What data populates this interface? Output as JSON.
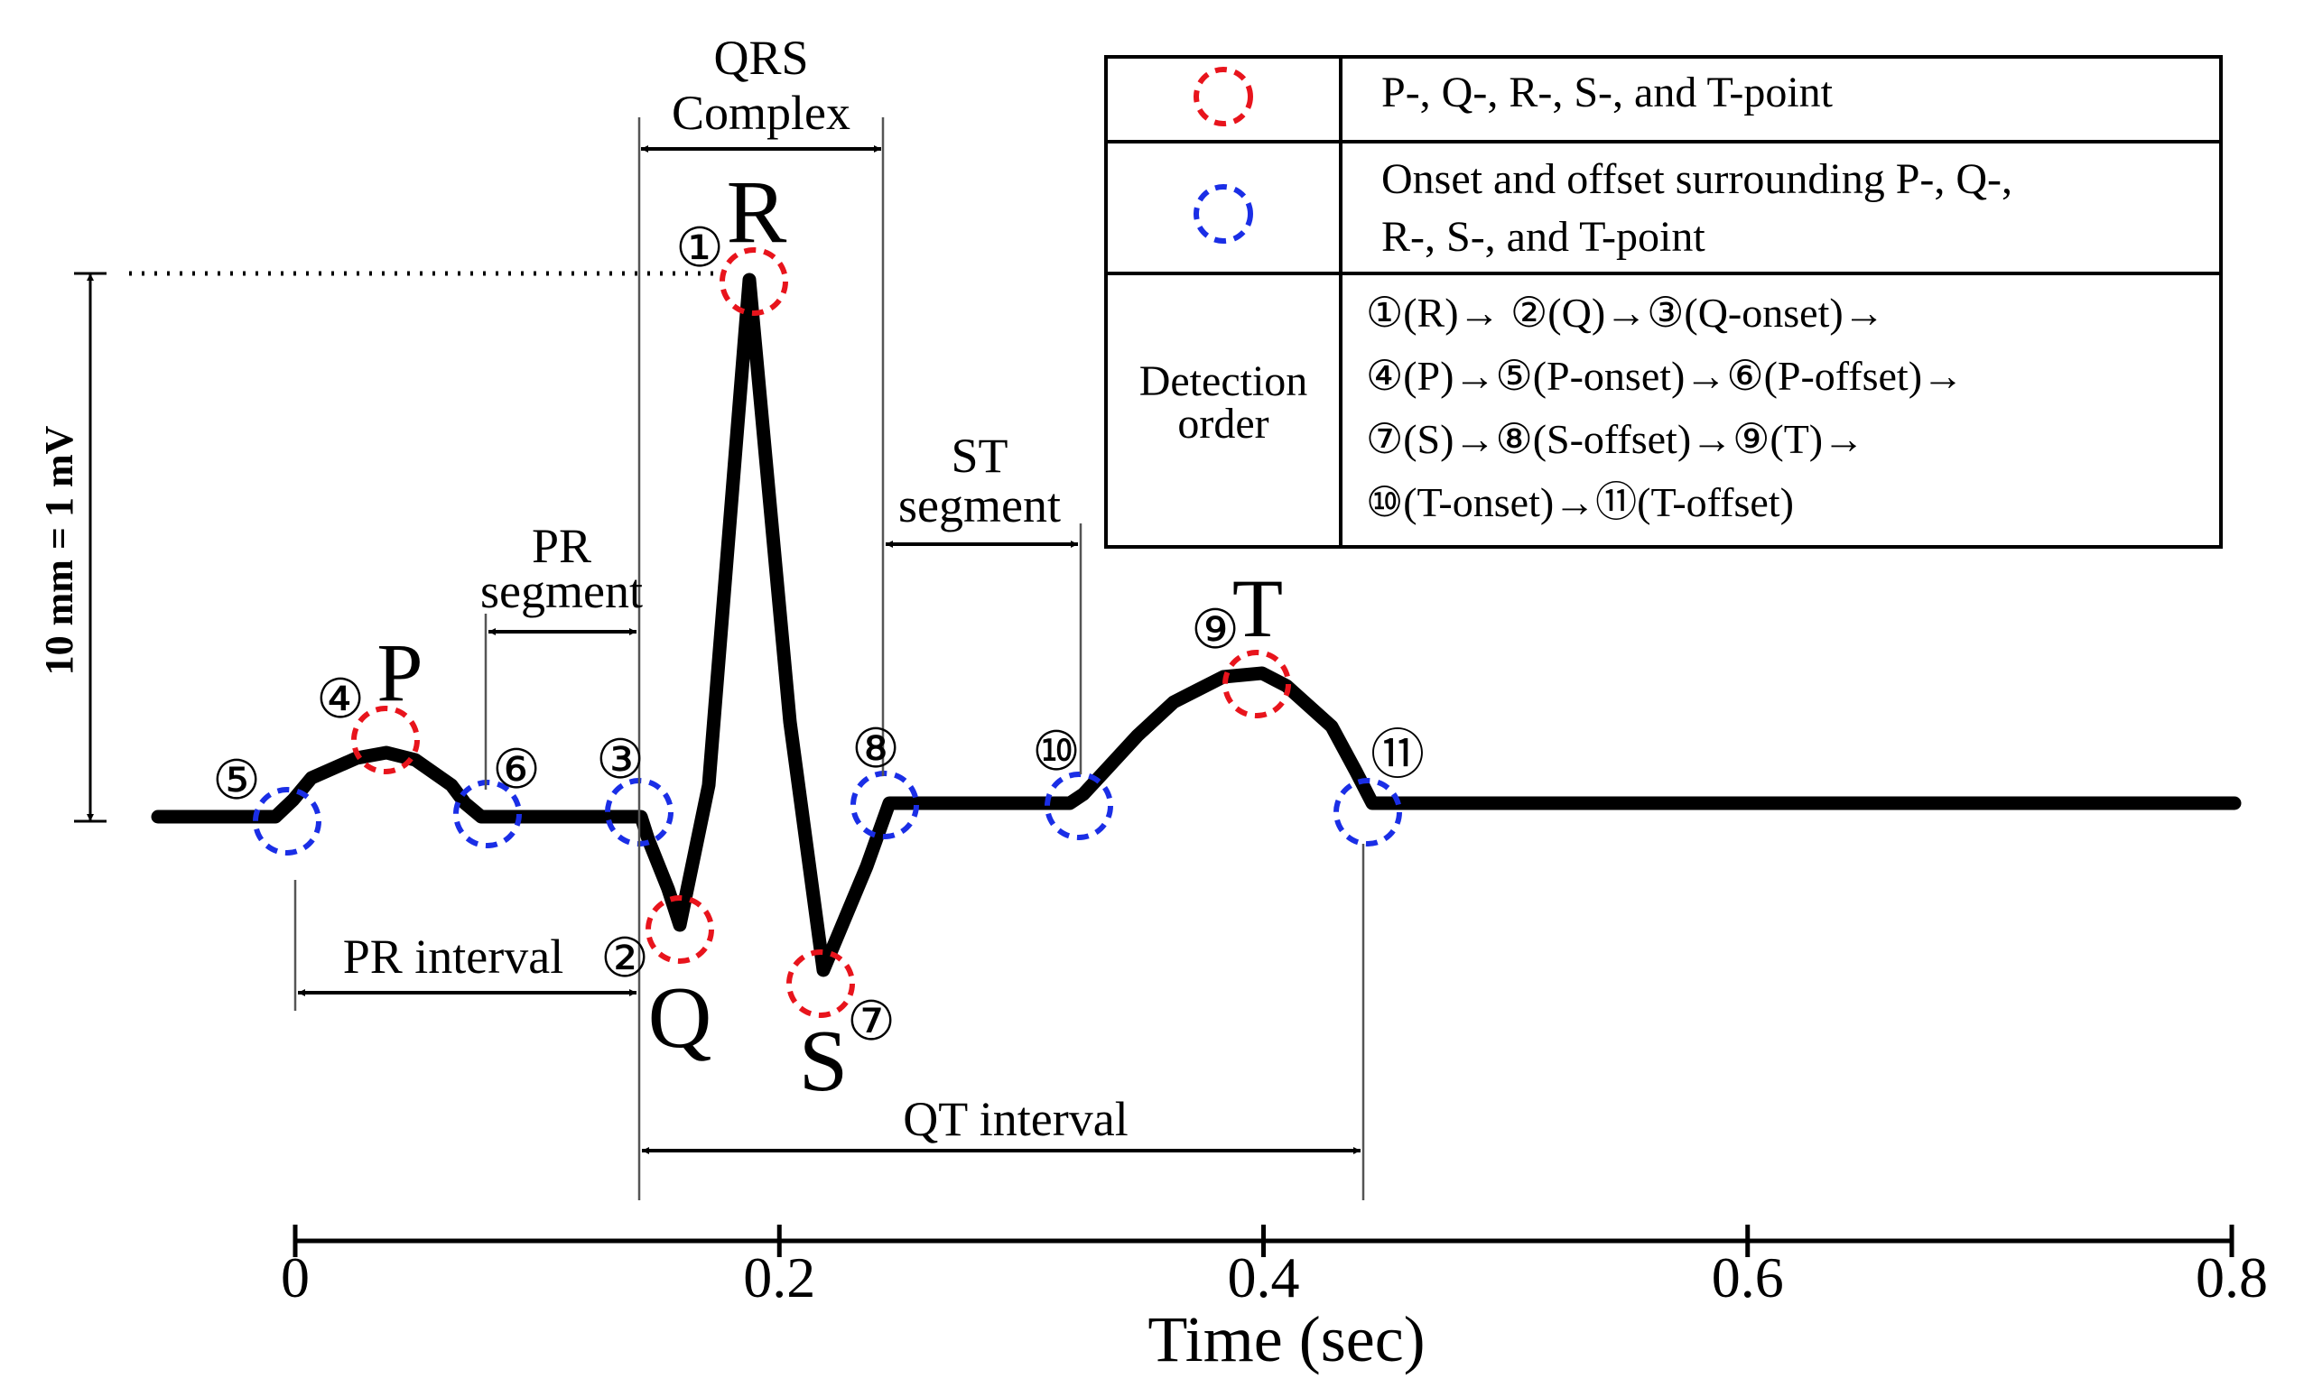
{
  "wave_labels": {
    "R": "R",
    "Q": "Q",
    "S": "S",
    "P": "P",
    "T": "T"
  },
  "markers": {
    "m1": "①",
    "m2": "②",
    "m3": "③",
    "m4": "④",
    "m5": "⑤",
    "m6": "⑥",
    "m7": "⑦",
    "m8": "⑧",
    "m9": "⑨",
    "m10": "⑩",
    "m11": "⑪"
  },
  "annotations": {
    "qrs_line1": "QRS",
    "qrs_line2": "Complex",
    "pr_segment_line1": "PR",
    "pr_segment_line2": "segment",
    "st_segment_line1": "ST",
    "st_segment_line2": "segment",
    "pr_interval": "PR interval",
    "qt_interval": "QT interval",
    "scale": "10 mm = 1 mV"
  },
  "axis": {
    "title": "Time (sec)",
    "range": [
      0,
      0.8
    ],
    "ticks": [
      0,
      0.2,
      0.4,
      0.6,
      0.8
    ],
    "tick_labels": [
      "0",
      "0.2",
      "0.4",
      "0.6",
      "0.8"
    ]
  },
  "legend": {
    "row1_text": "P-, Q-, R-, S-, and T-point",
    "row2_line1": "Onset and offset surrounding P-, Q-,",
    "row2_line2": "R-, S-, and T-point",
    "row3_label_line1": "Detection",
    "row3_label_line2": "order",
    "order_line1": "①(R)→ ②(Q)→③(Q-onset)→",
    "order_line2": "④(P)→⑤(P-onset)→⑥(P-offset)→",
    "order_line3": "⑦(S)→⑧(S-offset)→⑨(T)→",
    "order_line4": "⑩(T-onset)→⑪(T-offset)",
    "red_circle_color": "#e8141c",
    "blue_circle_color": "#1a2ee6"
  }
}
